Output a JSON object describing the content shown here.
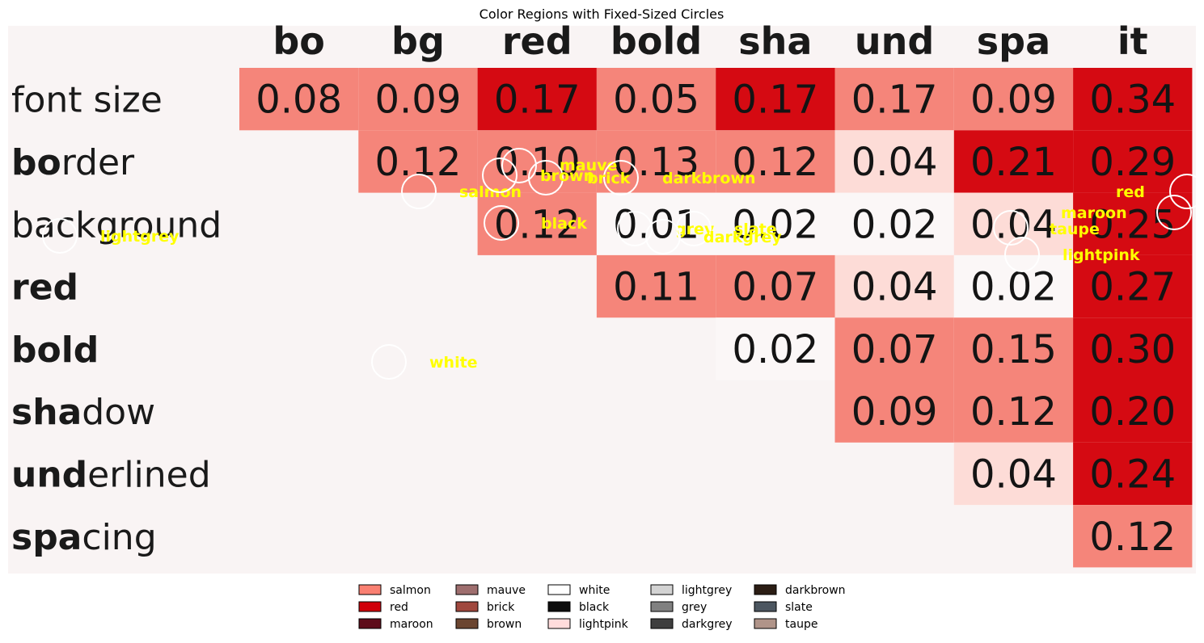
{
  "chart_data": {
    "type": "heatmap",
    "title": "Color Regions with Fixed-Sized Circles",
    "columns": [
      "bo",
      "bg",
      "red",
      "bold",
      "sha",
      "und",
      "spa",
      "it"
    ],
    "rows": [
      {
        "label": "font size",
        "bold_prefix": "",
        "rest": "font size",
        "values": [
          0.08,
          0.09,
          0.17,
          0.05,
          0.17,
          0.17,
          0.09,
          0.34
        ]
      },
      {
        "label": "border",
        "bold_prefix": "bo",
        "rest": "rder",
        "values": [
          null,
          0.12,
          0.1,
          0.13,
          0.12,
          0.04,
          0.21,
          0.29
        ]
      },
      {
        "label": "background",
        "bold_prefix": "",
        "rest": "background",
        "values": [
          null,
          null,
          0.12,
          0.01,
          0.02,
          0.02,
          0.04,
          0.25
        ]
      },
      {
        "label": "red",
        "bold_prefix": "red",
        "rest": "",
        "values": [
          null,
          null,
          null,
          0.11,
          0.07,
          0.04,
          0.02,
          0.27
        ]
      },
      {
        "label": "bold",
        "bold_prefix": "bold",
        "rest": "",
        "values": [
          null,
          null,
          null,
          null,
          0.02,
          0.07,
          0.15,
          0.3
        ]
      },
      {
        "label": "shadow",
        "bold_prefix": "sha",
        "rest": "dow",
        "values": [
          null,
          null,
          null,
          null,
          null,
          0.09,
          0.12,
          0.2
        ]
      },
      {
        "label": "underlined",
        "bold_prefix": "und",
        "rest": "erlined",
        "values": [
          null,
          null,
          null,
          null,
          null,
          null,
          0.04,
          0.24
        ]
      },
      {
        "label": "spacing",
        "bold_prefix": "spa",
        "rest": "cing",
        "values": [
          null,
          null,
          null,
          null,
          null,
          null,
          null,
          0.12
        ]
      }
    ],
    "cell_colors": [
      [
        "salmon",
        "salmon",
        "red",
        "salmon",
        "red",
        "salmon",
        "salmon",
        "red"
      ],
      [
        null,
        "salmon",
        "salmon",
        "salmon",
        "salmon",
        "lightpink",
        "red",
        "red"
      ],
      [
        null,
        null,
        "salmon",
        "white",
        "white",
        "white",
        "lightpink",
        "red"
      ],
      [
        null,
        null,
        null,
        "salmon",
        "salmon",
        "lightpink",
        "white",
        "red"
      ],
      [
        null,
        null,
        null,
        null,
        "white",
        "salmon",
        "salmon",
        "red"
      ],
      [
        null,
        null,
        null,
        null,
        null,
        "salmon",
        "salmon",
        "red"
      ],
      [
        null,
        null,
        null,
        null,
        null,
        null,
        "lightpink",
        "red"
      ],
      [
        null,
        null,
        null,
        null,
        null,
        null,
        null,
        "salmon"
      ]
    ],
    "circle_labels": [
      "salmon",
      "mauve",
      "brown",
      "brick",
      "darkbrown",
      "red",
      "maroon",
      "taupe",
      "lightpink",
      "black",
      "grey",
      "slate",
      "darkgrey",
      "lightgrey",
      "white"
    ],
    "legend": [
      {
        "name": "salmon",
        "color": "#fa8072"
      },
      {
        "name": "mauve",
        "color": "#9e6e6e"
      },
      {
        "name": "white",
        "color": "#ffffff"
      },
      {
        "name": "lightgrey",
        "color": "#d3d3d3"
      },
      {
        "name": "darkbrown",
        "color": "#2b1d14"
      },
      {
        "name": "red",
        "color": "#d0000a"
      },
      {
        "name": "brick",
        "color": "#a0483e"
      },
      {
        "name": "black",
        "color": "#0d0d0d"
      },
      {
        "name": "grey",
        "color": "#808080"
      },
      {
        "name": "slate",
        "color": "#4c5660"
      },
      {
        "name": "maroon",
        "color": "#5e0c1a"
      },
      {
        "name": "brown",
        "color": "#6b4530"
      },
      {
        "name": "lightpink",
        "color": "#ffdcdc"
      },
      {
        "name": "darkgrey",
        "color": "#3f3f3f"
      },
      {
        "name": "taupe",
        "color": "#b09489"
      }
    ],
    "colors": {
      "background": "#f9f4f4",
      "salmon": "#f5857a",
      "red": "#d50a12",
      "lightpink": "#fddcd7",
      "white": "#fbf7f7",
      "label": "#ffff00"
    },
    "legend_placement": "bottom-center"
  }
}
